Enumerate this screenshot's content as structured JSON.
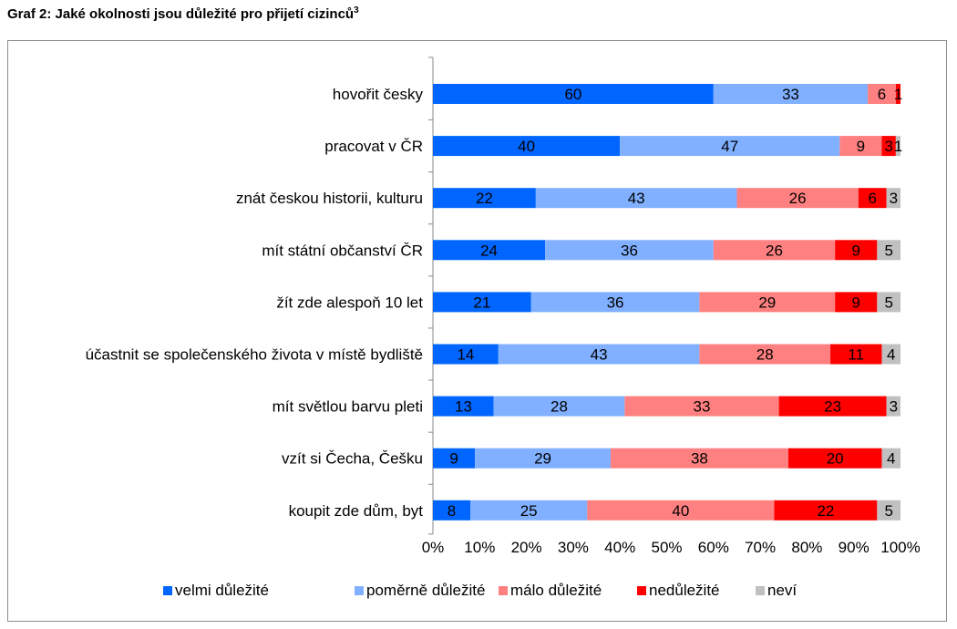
{
  "title": "Graf 2: Jaké okolnosti jsou důležité pro přijetí cizinců",
  "title_superscript": "3",
  "chart_data": {
    "type": "bar",
    "orientation": "horizontal",
    "stacked": "percent",
    "categories": [
      "hovořit česky",
      "pracovat v ČR",
      "znát českou historii, kulturu",
      "mít státní občanství ČR",
      "žít zde alespoň 10 let",
      "účastnit se společenského života v místě bydliště",
      "mít světlou barvu pleti",
      "vzít si Čecha, Češku",
      "koupit zde dům, byt"
    ],
    "series": [
      {
        "name": "velmi důležité",
        "color": "#0066ff",
        "values": [
          60,
          40,
          22,
          24,
          21,
          14,
          13,
          9,
          8
        ]
      },
      {
        "name": "poměrně důležité",
        "color": "#80b0ff",
        "values": [
          33,
          47,
          43,
          36,
          36,
          43,
          28,
          29,
          25
        ]
      },
      {
        "name": "málo důležité",
        "color": "#ff8080",
        "values": [
          6,
          9,
          26,
          26,
          29,
          28,
          33,
          38,
          40
        ]
      },
      {
        "name": "nedůležité",
        "color": "#ff0000",
        "values": [
          1,
          3,
          6,
          9,
          9,
          11,
          23,
          20,
          22
        ]
      },
      {
        "name": "neví",
        "color": "#c0c0c0",
        "values": [
          0,
          1,
          3,
          5,
          5,
          4,
          3,
          4,
          5
        ]
      }
    ],
    "xlim": [
      0,
      100
    ],
    "xticks": [
      "0%",
      "10%",
      "20%",
      "30%",
      "40%",
      "50%",
      "60%",
      "70%",
      "80%",
      "90%",
      "100%"
    ],
    "legend_position": "bottom",
    "grid": false
  }
}
